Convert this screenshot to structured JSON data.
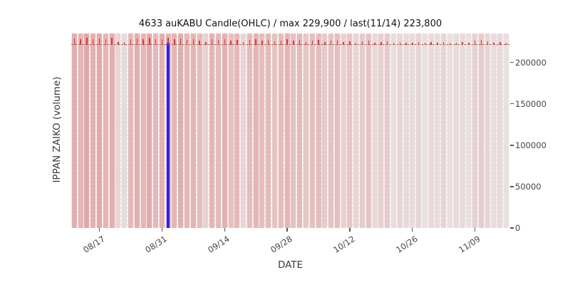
{
  "figure": {
    "title": "4633 auKABU Candle(OHLC) / max 229,900 / last(11/14) 223,800",
    "xlabel": "DATE",
    "ylabel": "IPPAN ZAIKO (volume)"
  },
  "colors": {
    "plot_background": "#ebebeb",
    "grid_line": "#ffffff",
    "volume_bar_red": "214,56,56",
    "candle_red": "#e03434",
    "price_dash_red": "#e03030",
    "highlight_blue": "#2626e6",
    "tick_text": "#444444"
  },
  "chart_data": {
    "type": "bar",
    "subtype": "candlestick-ohlc-with-volume",
    "title": "4633 auKABU Candle(OHLC) / max 229,900 / last(11/14) 223,800",
    "xlabel": "DATE",
    "ylabel": "IPPAN ZAIKO (volume)",
    "grid": true,
    "legend": false,
    "x_tick_labels": [
      "08/17",
      "08/31",
      "09/14",
      "09/28",
      "10/12",
      "10/26",
      "11/09"
    ],
    "x_tick_indices": [
      4,
      14,
      24,
      34,
      44,
      54,
      64
    ],
    "y_ticks": [
      0,
      50000,
      100000,
      150000,
      200000
    ],
    "ylim": [
      0,
      235000
    ],
    "max_price": 229900,
    "last_price": 223800,
    "last_date": "11/14",
    "price_line_level": 222000,
    "candle_base": 221000,
    "highlight_bar": {
      "index": 15,
      "top": 224000
    },
    "volume_intensity": [
      0.35,
      0.3,
      0.38,
      0.32,
      0.36,
      0.3,
      0.34,
      0.12,
      0.1,
      0.28,
      0.33,
      0.3,
      0.36,
      0.28,
      0.32,
      0.3,
      0.3,
      0.34,
      0.28,
      0.31,
      0.26,
      0.14,
      0.3,
      0.27,
      0.32,
      0.24,
      0.28,
      0.12,
      0.26,
      0.3,
      0.25,
      0.28,
      0.22,
      0.26,
      0.3,
      0.24,
      0.27,
      0.2,
      0.24,
      0.26,
      0.18,
      0.22,
      0.25,
      0.15,
      0.2,
      0.12,
      0.18,
      0.22,
      0.1,
      0.15,
      0.18,
      0.08,
      0.12,
      0.1,
      0.08,
      0.12,
      0.06,
      0.1,
      0.08,
      0.12,
      0.06,
      0.08,
      0.1,
      0.06,
      0.14,
      0.18,
      0.12,
      0.08,
      0.1,
      0.06
    ],
    "high_prices": [
      229000,
      228500,
      229900,
      228000,
      229000,
      228500,
      229500,
      225000,
      224500,
      228000,
      229000,
      228500,
      229500,
      228000,
      228500,
      229900,
      228000,
      229000,
      227500,
      228500,
      226000,
      224500,
      228000,
      227000,
      228500,
      226500,
      227500,
      224500,
      227000,
      228500,
      226000,
      227500,
      225500,
      226500,
      228000,
      226000,
      227000,
      225000,
      226000,
      227500,
      225000,
      226000,
      226500,
      224500,
      225500,
      224000,
      225500,
      226500,
      224000,
      225000,
      225500,
      223800,
      224500,
      224000,
      223800,
      224800,
      223500,
      224500,
      224000,
      225000,
      223500,
      224000,
      224500,
      223500,
      226000,
      227000,
      225500,
      224000,
      224500,
      223800
    ]
  }
}
